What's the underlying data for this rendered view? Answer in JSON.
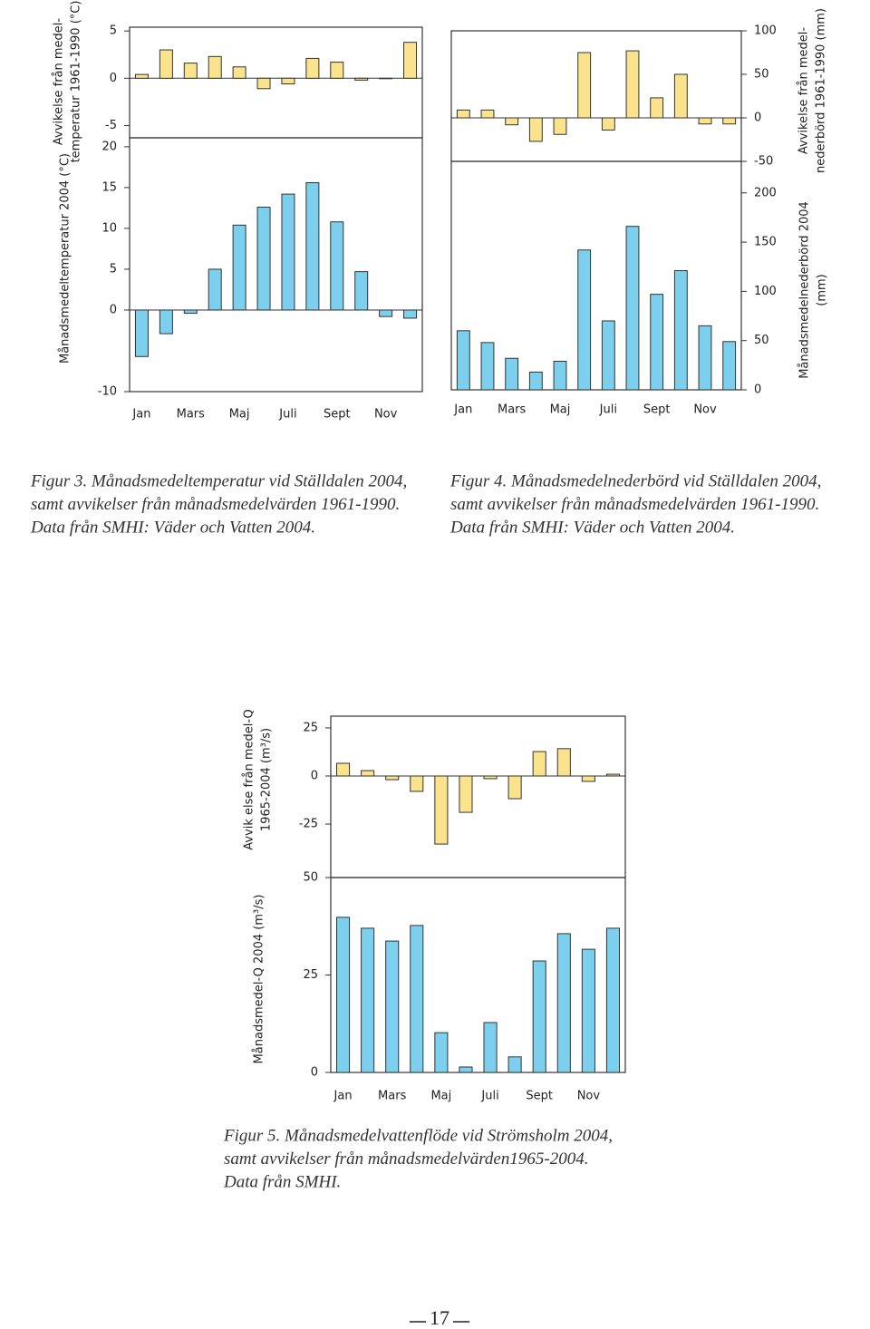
{
  "chart_data": [
    {
      "type": "bar",
      "ylabel": [
        "Avvikelse från medel-",
        "temperatur 1961-1990 (°C)"
      ],
      "values": [
        0.4,
        3.0,
        1.6,
        2.3,
        1.2,
        -1.1,
        -0.6,
        2.1,
        1.7,
        -0.2,
        0.0,
        3.8
      ],
      "color": "#fbe38e",
      "ylim": [
        -6.3,
        5.4
      ],
      "yticks": [
        -5,
        0,
        5
      ]
    },
    {
      "type": "bar",
      "ylabel": [
        "Månadsmedeltemperatur 2004 (°C)"
      ],
      "categories": [
        "Jan",
        null,
        "Mars",
        null,
        "Maj",
        null,
        "Juli",
        null,
        "Sept",
        null,
        "Nov",
        null
      ],
      "values": [
        -5.7,
        -2.9,
        -0.4,
        5.0,
        10.4,
        12.6,
        14.2,
        15.6,
        10.8,
        4.7,
        -0.8,
        -1.0
      ],
      "color": "#7dcfee",
      "ylim": [
        -10,
        21.1
      ],
      "yticks": [
        -10,
        0,
        5,
        10,
        15,
        20
      ]
    },
    {
      "type": "bar",
      "ylabel": [
        "Avvikelse från medel-",
        "nederbörd 1961-1990 (mm)"
      ],
      "values": [
        9,
        9,
        -8,
        -27,
        -19,
        75,
        -14,
        77,
        23,
        50,
        -7,
        -7
      ],
      "color": "#fbe38e",
      "ylim": [
        -50,
        100
      ],
      "yticks": [
        -50,
        0,
        50,
        100
      ]
    },
    {
      "type": "bar",
      "ylabel": [
        "Månadsmedelnederbörd 2004",
        "(mm)"
      ],
      "categories": [
        "Jan",
        null,
        "Mars",
        null,
        "Maj",
        null,
        "Juli",
        null,
        "Sept",
        null,
        "Nov",
        null
      ],
      "values": [
        60,
        48,
        32,
        18,
        29,
        142,
        70,
        166,
        97,
        121,
        65,
        49
      ],
      "color": "#7dcfee",
      "ylim": [
        0,
        232
      ],
      "yticks": [
        0,
        50,
        100,
        150,
        200
      ]
    },
    {
      "type": "bar",
      "ylabel": [
        "Avvik else från medel-Q",
        "1965-2004 (m³/s)"
      ],
      "values": [
        6.6,
        2.8,
        -1.9,
        -8.0,
        -35.4,
        -18.9,
        -1.4,
        -11.8,
        12.7,
        14.2,
        -2.8,
        0.9
      ],
      "color": "#fbe38e",
      "ylim": [
        -52.8,
        31.1
      ],
      "yticks": [
        -25,
        0,
        25
      ]
    },
    {
      "type": "bar",
      "ylabel": [
        "Månadsmedel-Q 2004 (m³/s)"
      ],
      "categories": [
        "Jan",
        null,
        "Mars",
        null,
        "Maj",
        null,
        "Juli",
        null,
        "Sept",
        null,
        "Nov",
        null
      ],
      "values": [
        39.8,
        37.0,
        33.7,
        37.7,
        10.2,
        1.4,
        12.8,
        4.0,
        28.6,
        35.6,
        31.6,
        37.0
      ],
      "color": "#7dcfee",
      "ylim": [
        0,
        50
      ],
      "yticks": [
        0,
        25,
        50
      ]
    }
  ],
  "captions": [
    [
      "Figur 3. Månadsmedeltemperatur vid Ställdalen 2004,",
      "samt avvikelser från månadsmedelvärden 1961-1990.",
      "Data från SMHI: Väder och Vatten 2004."
    ],
    [
      "Figur 4. Månadsmedelnederbörd vid Ställdalen 2004,",
      "samt avvikelser från månadsmedelvärden 1961-1990.",
      "Data från SMHI: Väder och Vatten 2004."
    ],
    [
      "Figur 5. Månadsmedelvattenflöde vid Strömsholm 2004,",
      "samt avvikelser från månadsmedelvärden1965-2004.",
      "Data från SMHI."
    ]
  ],
  "page_number": "17"
}
